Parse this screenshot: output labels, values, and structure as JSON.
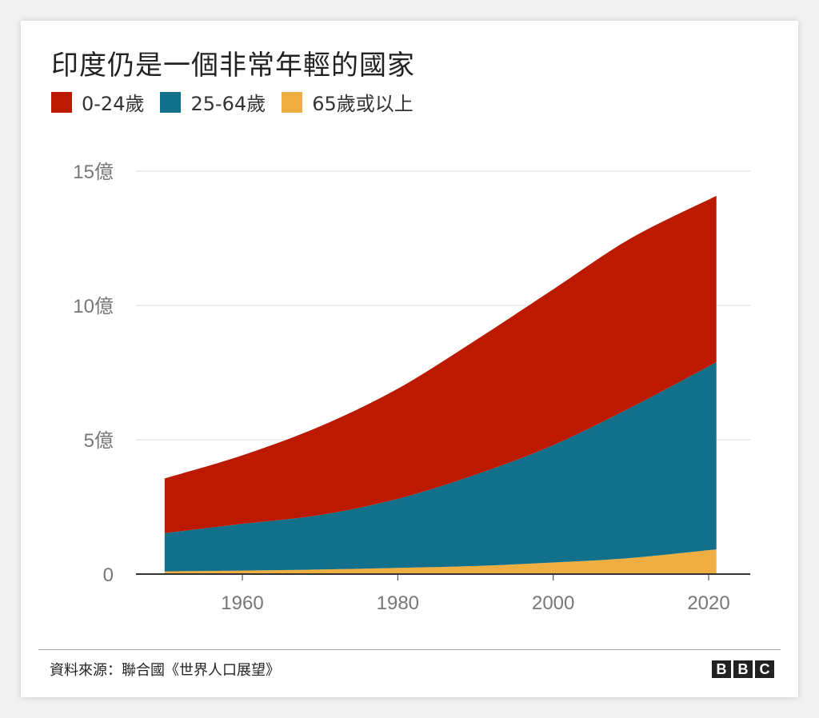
{
  "chart_data": {
    "type": "area",
    "stacked": true,
    "title": "印度仍是一個非常年輕的國家",
    "x": [
      1950,
      1960,
      1970,
      1980,
      1990,
      2000,
      2010,
      2021
    ],
    "series": [
      {
        "name": "65歲或以上",
        "color": "#eeae42",
        "values": [
          0.1,
          0.13,
          0.17,
          0.23,
          0.3,
          0.43,
          0.6,
          0.92
        ]
      },
      {
        "name": "25-64歲",
        "color": "#12708a",
        "values": [
          1.42,
          1.74,
          2.03,
          2.57,
          3.4,
          4.37,
          5.6,
          6.97
        ]
      },
      {
        "name": "0-24歲",
        "color": "#bb1a00",
        "values": [
          2.04,
          2.55,
          3.3,
          4.1,
          5.0,
          5.8,
          6.3,
          6.19
        ]
      }
    ],
    "legend_order": [
      "0-24歲",
      "25-64歲",
      "65歲或以上"
    ],
    "legend_position": "top-left",
    "ylim": [
      0,
      15
    ],
    "yticks": [
      0,
      5,
      10,
      15
    ],
    "ytick_labels": [
      "0",
      "5億",
      "10億",
      "15億"
    ],
    "xticks": [
      1960,
      1980,
      2000,
      2020
    ],
    "xtick_labels": [
      "1960",
      "1980",
      "2000",
      "2020"
    ],
    "grid": true,
    "unit": "億"
  },
  "footer": {
    "source": "資料來源：聯合國《世界人口展望》",
    "logo": [
      "B",
      "B",
      "C"
    ]
  }
}
